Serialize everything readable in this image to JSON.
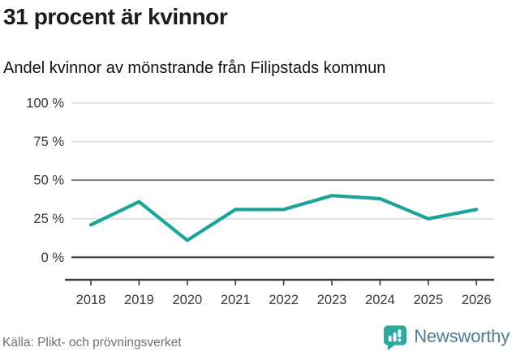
{
  "header": {
    "title": "31 procent är kvinnor",
    "subtitle": "Andel kvinnor av mönstrande från Filipstads kommun"
  },
  "chart_data": {
    "type": "line",
    "title": "31 procent är kvinnor",
    "subtitle": "Andel kvinnor av mönstrande från Filipstads kommun",
    "categories": [
      "2018",
      "2019",
      "2020",
      "2021",
      "2022",
      "2023",
      "2024",
      "2025",
      "2026"
    ],
    "series": [
      {
        "name": "Andel kvinnor av mönstrande",
        "values": [
          21,
          36,
          11,
          31,
          31,
          40,
          38,
          25,
          31
        ]
      }
    ],
    "unit": "%",
    "xlabel": "",
    "ylabel": "",
    "ylim": [
      0,
      100
    ],
    "yticks": [
      {
        "v": 100,
        "label": "100 %"
      },
      {
        "v": 75,
        "label": "75 %"
      },
      {
        "v": 50,
        "label": "50 %"
      },
      {
        "v": 25,
        "label": "25 %"
      },
      {
        "v": 0,
        "label": "0 %"
      }
    ],
    "grid": true,
    "legend": "none",
    "parity_line": 50,
    "source": "Källa: Plikt- och prövningsverket"
  },
  "footer": {
    "source": "Källa: Plikt- och prövningsverket",
    "brand": "Newsworthy"
  },
  "colors": {
    "line": "#1aa49a",
    "grid_light": "#dcdcdc",
    "grid_parity": "#7d7d7d",
    "grid_zero": "#3d3d3d",
    "axis": "#3d3d3d",
    "tick_text": "#383838",
    "brand_teal": "#2ea9a0",
    "brand_text": "#4d7c92"
  }
}
